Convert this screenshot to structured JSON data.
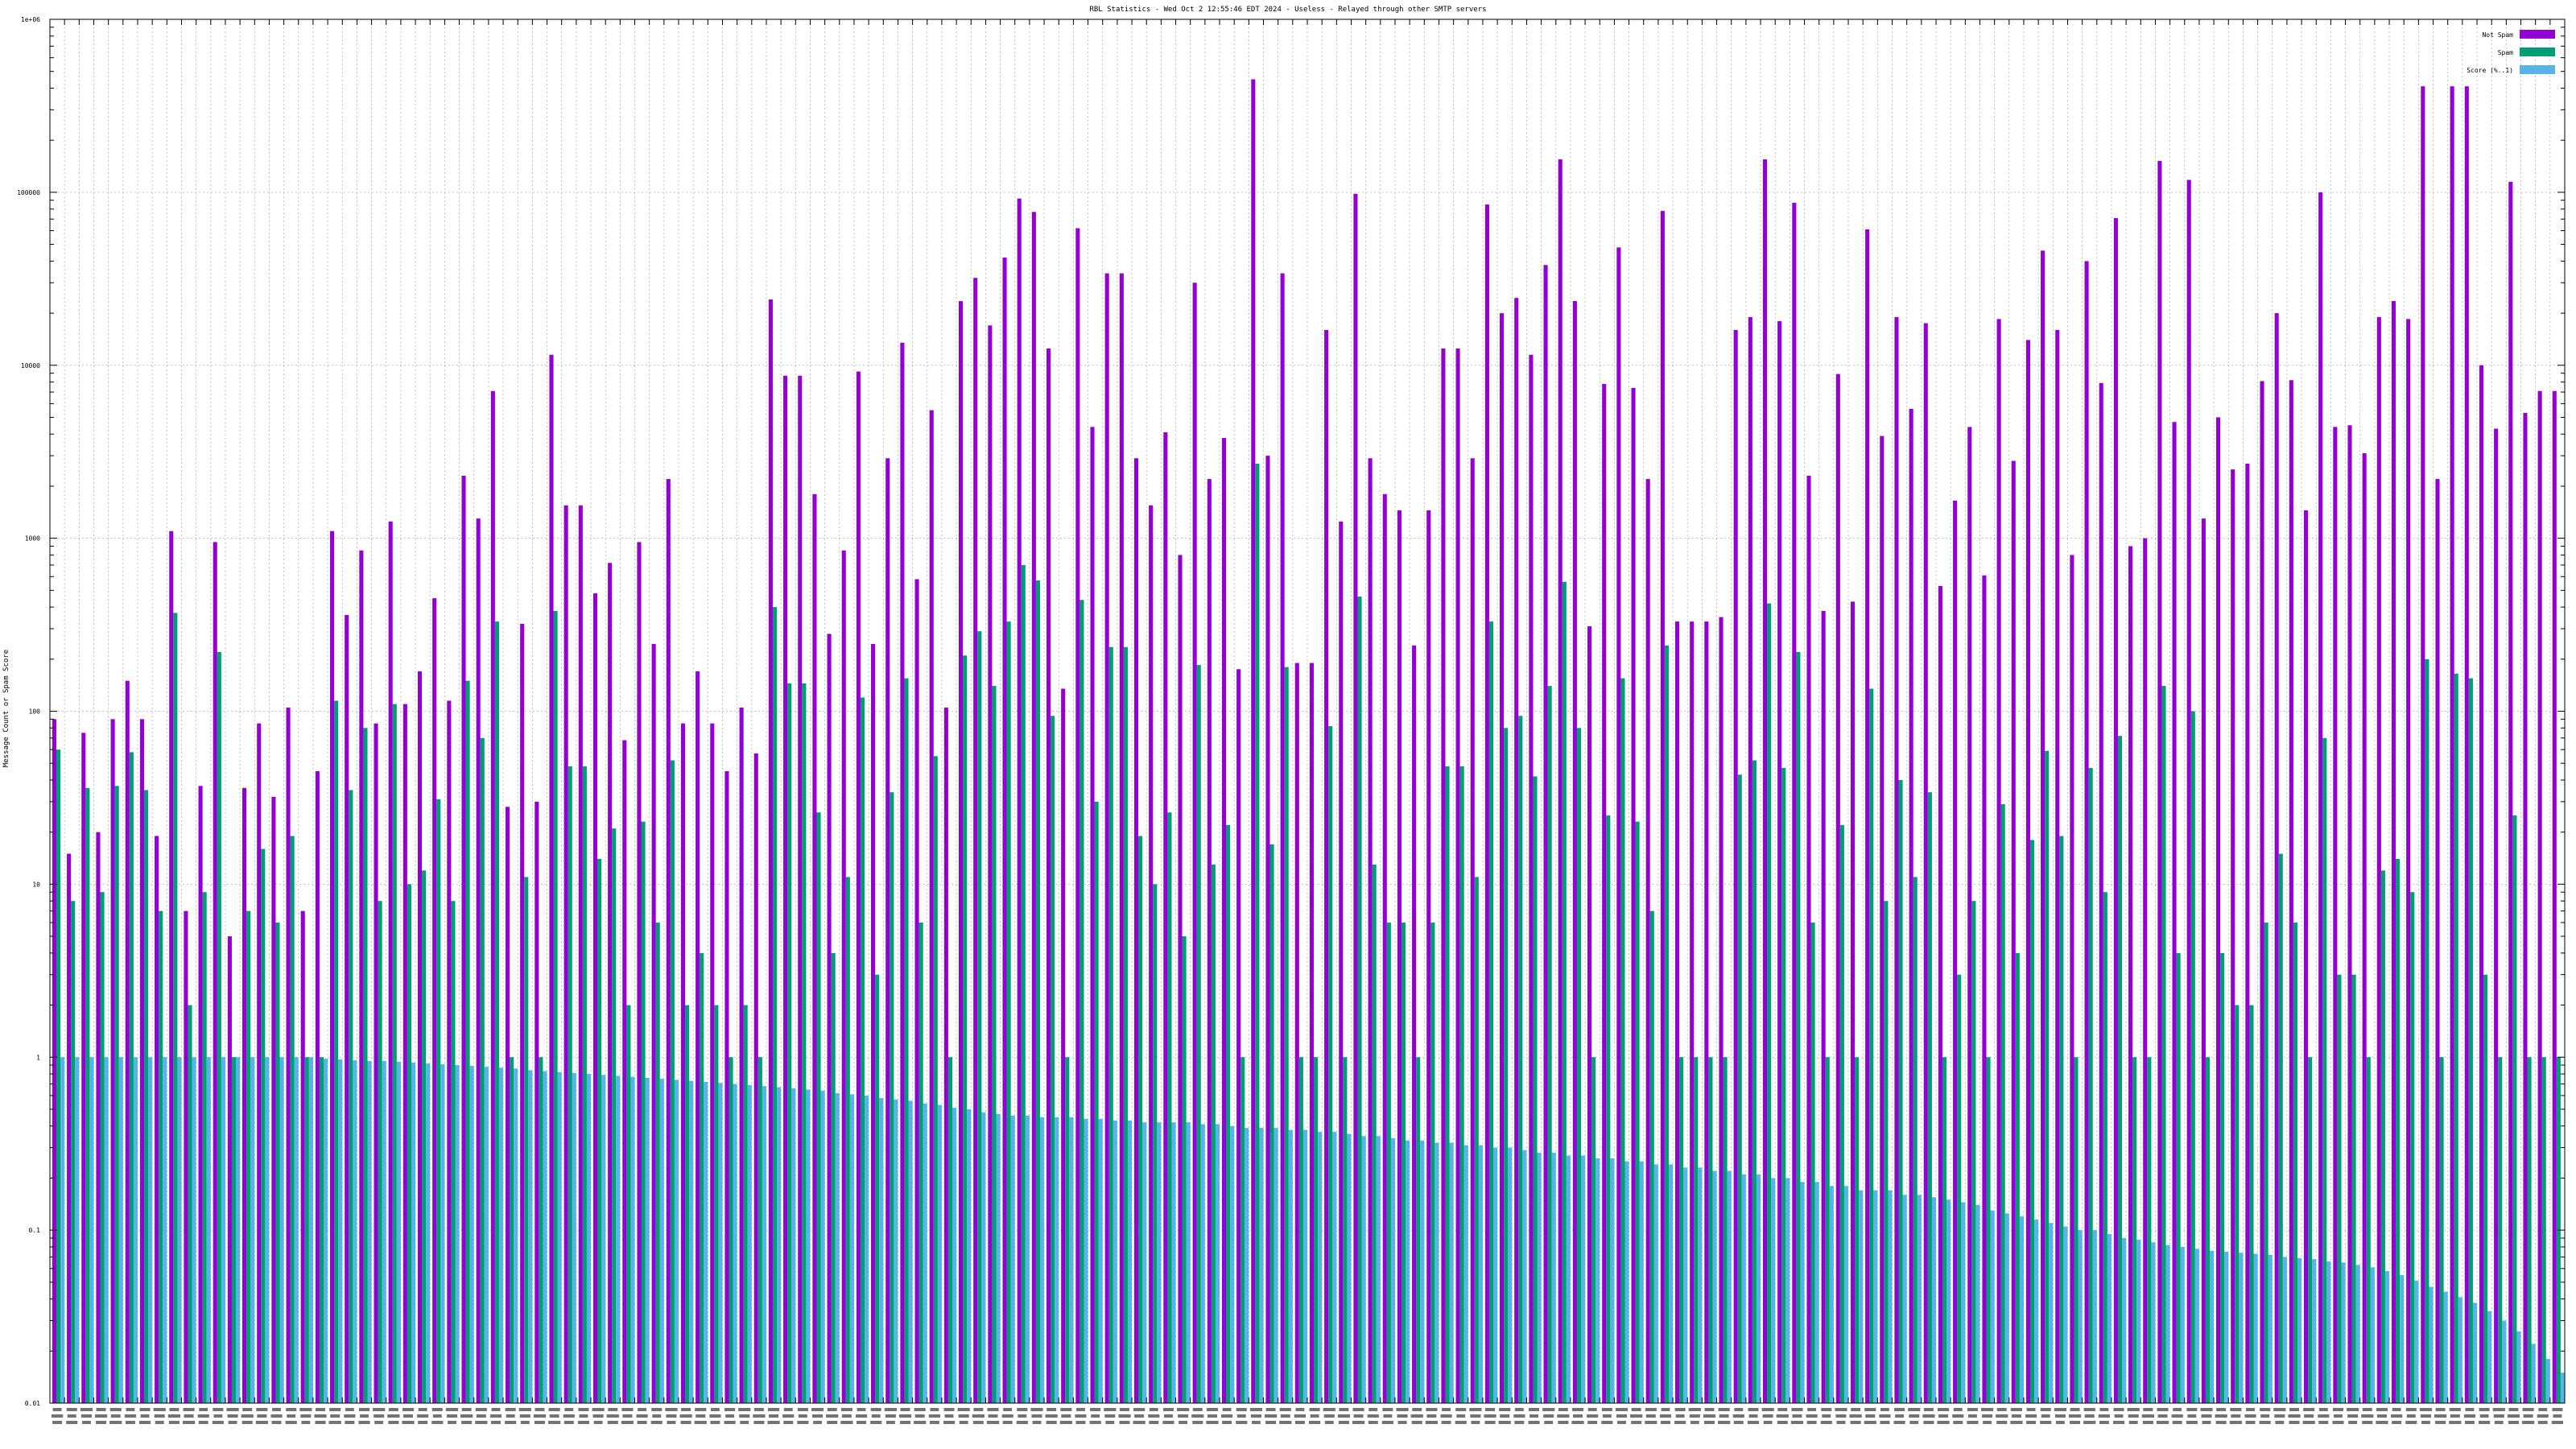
{
  "chart_data": {
    "type": "bar",
    "title": "RBL Statistics - Wed Oct  2 12:55:46 EDT 2024 - Useless - Relayed through other SMTP servers",
    "xlabel": "",
    "ylabel": "Message Count or Spam Score",
    "yscale": "log",
    "ylim": [
      0.01,
      1000000
    ],
    "y_ticks": [
      "0.01",
      "0.1",
      "1",
      "10",
      "100",
      "1000",
      "10000",
      "100000",
      "1e+06"
    ],
    "legend_position": "top-right",
    "grid": true,
    "categories_note": "x-axis category labels are printed in a tiny font and are not legible in the screenshot",
    "series": [
      {
        "name": "Not Spam",
        "color": "#9400d3",
        "values": [
          90,
          15,
          75,
          20,
          90,
          150,
          90,
          19,
          1100,
          7,
          37,
          950,
          5,
          36,
          85,
          32,
          105,
          7,
          45,
          1100,
          360,
          850,
          85,
          1250,
          110,
          170,
          450,
          115,
          2300,
          1300,
          7100,
          28,
          320,
          30,
          11500,
          1550,
          1550,
          480,
          720,
          68,
          950,
          245,
          2200,
          85,
          170,
          85,
          45,
          105,
          57,
          24000,
          8700,
          8700,
          1800,
          280,
          850,
          9200,
          245,
          2900,
          13500,
          580,
          5500,
          105,
          23500,
          32000,
          17000,
          42000,
          92000,
          77000,
          12500,
          135,
          62000,
          4400,
          34000,
          34000,
          2900,
          1550,
          4100,
          800,
          30000,
          2200,
          3800,
          175,
          450000,
          3000,
          34000,
          190,
          190,
          16000,
          1250,
          98000,
          2900,
          1800,
          1450,
          240,
          1450,
          12500,
          12500,
          2900,
          85000,
          20000,
          24500,
          11500,
          38000,
          155000,
          23500,
          310,
          7800,
          48000,
          7400,
          2200,
          78000,
          330,
          330,
          330,
          350,
          16000,
          19000,
          155000,
          18000,
          87000,
          2300,
          380,
          8900,
          430,
          61000,
          3900,
          19000,
          5600,
          17500,
          530,
          1650,
          4400,
          610,
          18500,
          2800,
          14000,
          46000,
          16000,
          800,
          40000,
          7900,
          71000,
          900,
          1000,
          152000,
          4700,
          118000,
          1300,
          5000,
          2500,
          2700,
          8100,
          20000,
          8200,
          1450,
          100000,
          4400,
          4500,
          3100,
          19000,
          23500,
          18500,
          410000,
          2200,
          410000,
          410000,
          10000,
          4300,
          115000,
          5300,
          7100,
          7100
        ],
        "pattern": "solid"
      },
      {
        "name": "Spam",
        "color": "#009e73",
        "values": [
          60,
          8,
          36,
          9,
          37,
          58,
          35,
          7,
          370,
          2,
          9,
          220,
          1,
          7,
          16,
          6,
          19,
          1,
          1,
          115,
          35,
          80,
          8,
          110,
          10,
          12,
          31,
          8,
          150,
          70,
          330,
          1,
          11,
          1,
          380,
          48,
          48,
          14,
          21,
          2,
          23,
          6,
          52,
          2,
          4,
          2,
          1,
          2,
          1,
          400,
          145,
          145,
          26,
          4,
          11,
          120,
          3,
          34,
          155,
          6,
          55,
          1,
          210,
          290,
          140,
          330,
          700,
          570,
          94,
          1,
          440,
          30,
          235,
          235,
          19,
          10,
          26,
          5,
          185,
          13,
          22,
          1,
          2700,
          17,
          180,
          1,
          1,
          82,
          1,
          460,
          13,
          6,
          6,
          1,
          6,
          48,
          48,
          11,
          330,
          80,
          94,
          42,
          140,
          560,
          80,
          1,
          25,
          155,
          23,
          7,
          240,
          1,
          1,
          1,
          1,
          43,
          52,
          420,
          47,
          220,
          6,
          1,
          22,
          1,
          135,
          8,
          40,
          11,
          34,
          1,
          3,
          8,
          1,
          29,
          4,
          18,
          59,
          19,
          1,
          47,
          9,
          72,
          1,
          1,
          140,
          4,
          100,
          1,
          4,
          2,
          2,
          6,
          15,
          6,
          1,
          70,
          3,
          3,
          1,
          12,
          14,
          9,
          200,
          1,
          165,
          155,
          3,
          1,
          25,
          1,
          1,
          1
        ],
        "pattern": "solid"
      },
      {
        "name": "Score (%..1)",
        "color": "#56b4e9",
        "values": [
          1.0,
          1.0,
          1.0,
          1.0,
          1.0,
          1.0,
          1.0,
          1.0,
          1.0,
          1.0,
          1.0,
          1.0,
          1.0,
          1.0,
          1.0,
          1.0,
          1.0,
          1.0,
          0.98,
          0.97,
          0.96,
          0.95,
          0.95,
          0.94,
          0.93,
          0.92,
          0.91,
          0.9,
          0.89,
          0.88,
          0.87,
          0.86,
          0.84,
          0.83,
          0.82,
          0.81,
          0.8,
          0.79,
          0.78,
          0.77,
          0.76,
          0.75,
          0.74,
          0.73,
          0.72,
          0.71,
          0.7,
          0.69,
          0.68,
          0.67,
          0.66,
          0.65,
          0.64,
          0.62,
          0.61,
          0.6,
          0.58,
          0.57,
          0.56,
          0.54,
          0.53,
          0.51,
          0.5,
          0.48,
          0.47,
          0.46,
          0.46,
          0.45,
          0.45,
          0.45,
          0.44,
          0.44,
          0.43,
          0.43,
          0.42,
          0.42,
          0.42,
          0.42,
          0.41,
          0.41,
          0.4,
          0.39,
          0.39,
          0.39,
          0.38,
          0.38,
          0.37,
          0.37,
          0.36,
          0.35,
          0.35,
          0.34,
          0.33,
          0.33,
          0.32,
          0.32,
          0.31,
          0.31,
          0.3,
          0.3,
          0.29,
          0.28,
          0.28,
          0.27,
          0.27,
          0.26,
          0.26,
          0.25,
          0.25,
          0.24,
          0.24,
          0.23,
          0.23,
          0.22,
          0.22,
          0.21,
          0.21,
          0.2,
          0.2,
          0.19,
          0.19,
          0.18,
          0.18,
          0.17,
          0.17,
          0.17,
          0.16,
          0.16,
          0.155,
          0.15,
          0.145,
          0.14,
          0.13,
          0.125,
          0.12,
          0.115,
          0.11,
          0.105,
          0.1,
          0.1,
          0.095,
          0.09,
          0.088,
          0.085,
          0.082,
          0.08,
          0.078,
          0.076,
          0.075,
          0.074,
          0.073,
          0.072,
          0.07,
          0.069,
          0.068,
          0.066,
          0.065,
          0.063,
          0.061,
          0.058,
          0.055,
          0.051,
          0.047,
          0.044,
          0.041,
          0.038,
          0.034,
          0.03,
          0.026,
          0.022,
          0.018,
          0.015
        ],
        "pattern": "solid"
      }
    ]
  }
}
